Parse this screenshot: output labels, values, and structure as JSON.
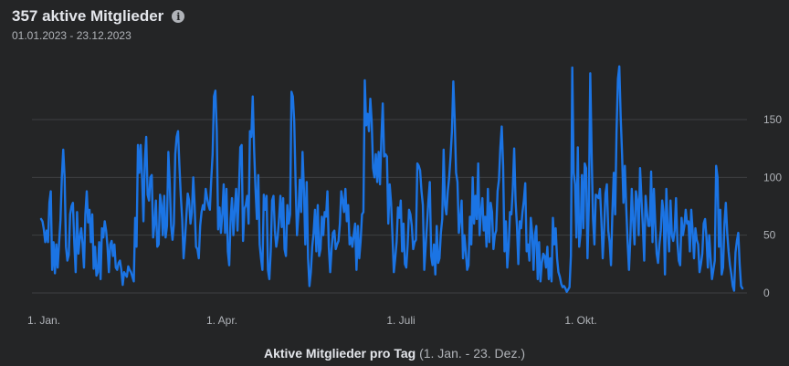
{
  "header": {
    "title": "357 aktive Mitglieder",
    "info_icon": "info-icon",
    "date_range": "01.01.2023 - 23.12.2023"
  },
  "caption": {
    "main": "Aktive Mitglieder pro Tag",
    "range": "(1. Jan. - 23. Dez.)"
  },
  "colors": {
    "background": "#242526",
    "line": "#1b74e4",
    "grid": "#3e4042",
    "text": "#e4e6eb",
    "muted": "#b0b3b8"
  },
  "chart_data": {
    "type": "line",
    "x_labels": [
      "1. Jan.",
      "1. Apr.",
      "1. Juli",
      "1. Okt."
    ],
    "ylim": [
      0,
      150
    ],
    "yticks": [
      0,
      50,
      100,
      150
    ],
    "grid": true,
    "series": [
      {
        "values": [
          64,
          62,
          55,
          44,
          54,
          44,
          78,
          88,
          20,
          44,
          17,
          42,
          22,
          43,
          63,
          100,
          124,
          100,
          40,
          28,
          33,
          68,
          75,
          78,
          43,
          18,
          70,
          34,
          48,
          56,
          42,
          22,
          68,
          88,
          61,
          72,
          44,
          68,
          21,
          40,
          15,
          18,
          44,
          12,
          56,
          48,
          62,
          54,
          40,
          18,
          42,
          45,
          32,
          42,
          22,
          20,
          26,
          28,
          20,
          7,
          18,
          16,
          14,
          23,
          20,
          18,
          14,
          10,
          65,
          40,
          128,
          104,
          128,
          100,
          62,
          115,
          135,
          85,
          80,
          100,
          102,
          48,
          60,
          80,
          40,
          42,
          85,
          76,
          50,
          84,
          48,
          58,
          122,
          95,
          58,
          46,
          60,
          120,
          135,
          140,
          110,
          84,
          64,
          30,
          46,
          66,
          86,
          80,
          60,
          70,
          100,
          76,
          40,
          38,
          30,
          58,
          70,
          76,
          72,
          90,
          82,
          76,
          72,
          98,
          120,
          170,
          175,
          140,
          55,
          74,
          52,
          68,
          94,
          52,
          90,
          36,
          24,
          64,
          82,
          50,
          72,
          90,
          54,
          88,
          126,
          128,
          45,
          73,
          76,
          84,
          60,
          140,
          135,
          170,
          124,
          90,
          64,
          102,
          42,
          30,
          20,
          85,
          72,
          84,
          20,
          12,
          36,
          80,
          84,
          54,
          40,
          48,
          64,
          84,
          57,
          82,
          38,
          32,
          76,
          60,
          68,
          174,
          170,
          148,
          94,
          50,
          68,
          98,
          70,
          122,
          90,
          42,
          96,
          30,
          6,
          18,
          40,
          52,
          72,
          36,
          76,
          32,
          38,
          66,
          50,
          70,
          66,
          88,
          40,
          18,
          38,
          52,
          54,
          38,
          42,
          45,
          60,
          88,
          80,
          70,
          90,
          62,
          76,
          42,
          48,
          40,
          50,
          60,
          20,
          58,
          30,
          45,
          68,
          70,
          184,
          145,
          155,
          140,
          168,
          148,
          108,
          100,
          120,
          96,
          122,
          94,
          134,
          164,
          118,
          120,
          118,
          60,
          94,
          78,
          50,
          18,
          30,
          44,
          74,
          65,
          80,
          36,
          60,
          25,
          22,
          42,
          72,
          68,
          58,
          38,
          44,
          46,
          112,
          110,
          106,
          88,
          76,
          20,
          40,
          60,
          80,
          96,
          32,
          24,
          42,
          16,
          58,
          26,
          30,
          52,
          64,
          124,
          76,
          68,
          88,
          100,
          118,
          140,
          183,
          150,
          104,
          96,
          52,
          64,
          80,
          30,
          50,
          36,
          20,
          24,
          66,
          42,
          100,
          60,
          84,
          64,
          112,
          50,
          70,
          82,
          54,
          66,
          40,
          90,
          44,
          78,
          70,
          38,
          50,
          54,
          88,
          98,
          126,
          144,
          110,
          36,
          62,
          22,
          40,
          70,
          68,
          90,
          125,
          80,
          58,
          25,
          62,
          56,
          70,
          80,
          95,
          36,
          42,
          28,
          65,
          52,
          20,
          50,
          58,
          12,
          44,
          10,
          26,
          34,
          32,
          22,
          40,
          12,
          30,
          10,
          65,
          42,
          56,
          30,
          18,
          14,
          8,
          5,
          6,
          4,
          1,
          3,
          5,
          32,
          195,
          104,
          94,
          48,
          126,
          40,
          52,
          102,
          56,
          112,
          108,
          30,
          78,
          190,
          120,
          64,
          42,
          85,
          84,
          82,
          90,
          64,
          30,
          54,
          86,
          94,
          54,
          44,
          24,
          70,
          104,
          68,
          140,
          185,
          196,
          152,
          120,
          78,
          110,
          74,
          44,
          20,
          48,
          90,
          62,
          42,
          88,
          80,
          50,
          108,
          82,
          58,
          28,
          84,
          70,
          58,
          58,
          105,
          44,
          90,
          60,
          34,
          26,
          42,
          54,
          80,
          70,
          16,
          90,
          56,
          36,
          80,
          50,
          45,
          54,
          82,
          44,
          28,
          24,
          65,
          50,
          58,
          72,
          60,
          62,
          36,
          72,
          54,
          30,
          56,
          46,
          42,
          18,
          25,
          34,
          60,
          64,
          48,
          22,
          50,
          30,
          12,
          20,
          28,
          110,
          100,
          40,
          72,
          16,
          22,
          60,
          78,
          52,
          36,
          24,
          16,
          6,
          2,
          35,
          45,
          52,
          25,
          6,
          4
        ]
      }
    ]
  }
}
